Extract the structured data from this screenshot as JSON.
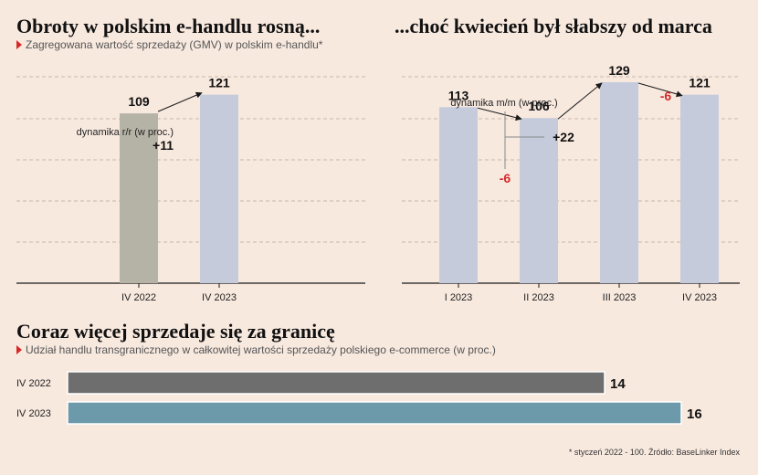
{
  "panel1": {
    "title": "Obroty w polskim e-handlu rosną...",
    "subtitle": "Zagregowana wartość sprzedaży (GMV) w polskim e-handlu*",
    "annotation_label": "dynamika r/r (w proc.)",
    "annotation_value": "+11"
  },
  "panel2": {
    "title": "...choć kwiecień był słabszy od marca",
    "annotation_label": "dynamika m/m (w proc.)"
  },
  "panel3": {
    "title": "Coraz więcej sprzedaje się za granicę",
    "subtitle": "Udział handlu transgranicznego w całkowitej wartości sprzedaży polskiego e-commerce (w proc.)"
  },
  "footnote": "* styczeń 2022 - 100. Źródło: BaseLinker Index",
  "colors": {
    "background": "#f8e9df",
    "bar_gray": "#b5b3a6",
    "bar_blue": "#c5cbdb",
    "hbar_gray": "#6e6e6e",
    "hbar_blue": "#6c9aab",
    "negative": "#d42a2a"
  },
  "chart_data": [
    {
      "type": "bar",
      "categories": [
        "IV 2022",
        "IV 2023"
      ],
      "values": [
        109,
        121
      ],
      "ylim": [
        0,
        135
      ],
      "grid": true
    },
    {
      "type": "bar",
      "categories": [
        "I 2023",
        "II 2023",
        "III 2023",
        "IV 2023"
      ],
      "values": [
        113,
        106,
        129,
        121
      ],
      "changes": [
        "-6",
        "+22",
        "-6"
      ],
      "ylim": [
        0,
        135
      ],
      "grid": true
    },
    {
      "type": "bar",
      "orientation": "horizontal",
      "categories": [
        "IV 2022",
        "IV 2023"
      ],
      "values": [
        14,
        16
      ],
      "xlim": [
        0,
        16
      ]
    }
  ]
}
